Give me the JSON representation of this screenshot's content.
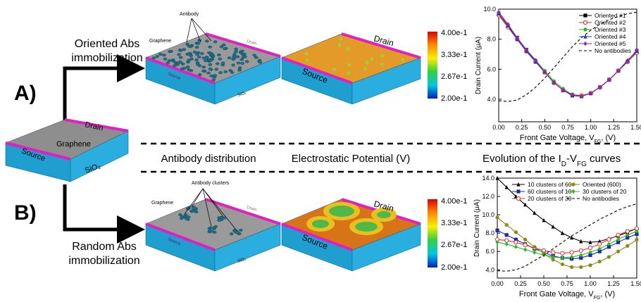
{
  "panel_labels": {
    "a": "A)",
    "b": "B)"
  },
  "routes": {
    "oriented": [
      "Oriented Abs",
      "immobilization"
    ],
    "random": [
      "Random Abs",
      "immobilization"
    ]
  },
  "base_device": {
    "graphene": "Graphene",
    "drain": "Drain",
    "source": "Source",
    "oxide": "SiO₂"
  },
  "oriented_device": {
    "antibody": "Antibody",
    "graphene": "Graphene",
    "source": "Source",
    "oxide": "SiO₂",
    "drain": "Drain"
  },
  "oriented_potential": {
    "drain": "Drain",
    "source": "Source"
  },
  "random_device": {
    "antibody": "Antibody clusters",
    "graphene": "Graphene",
    "source": "Source",
    "oxide": "SiO₂",
    "drain": "Drain"
  },
  "random_potential": {
    "drain": "Drain",
    "source": "Source"
  },
  "colorbar_top": [
    "4.00e-1",
    "3.33e-1",
    "2.67e-1",
    "2.00e-1"
  ],
  "colorbar_bottom": [
    "4.00e-1",
    "3.33e-1",
    "2.67e-1",
    "2.00e-1"
  ],
  "column_headings": {
    "distribution": "Antibody distribution",
    "potential": "Electrostatic Potential (V)",
    "curves": [
      "Evolution of the I",
      "D",
      "-V",
      "FG",
      " curves"
    ]
  },
  "chart_data": [
    {
      "type": "line",
      "xlabel": [
        "Front Gate Voltage, V",
        "FG",
        ", (V)"
      ],
      "ylabel": "Drain Current (μA)",
      "x": [
        0,
        0.1,
        0.2,
        0.3,
        0.4,
        0.5,
        0.6,
        0.7,
        0.8,
        0.9,
        1.0,
        1.1,
        1.2,
        1.3,
        1.4,
        1.5
      ],
      "xlim": [
        0,
        1.5
      ],
      "xticks": [
        {
          "value": 0,
          "label": "0.00"
        },
        {
          "value": 0.25,
          "label": "0.25"
        },
        {
          "value": 0.5,
          "label": "0.50"
        },
        {
          "value": 0.75,
          "label": "0.75"
        },
        {
          "value": 1,
          "label": "1.00"
        },
        {
          "value": 1.25,
          "label": "1.25"
        },
        {
          "value": 1.5,
          "label": "1.50"
        }
      ],
      "ylim": [
        2.5,
        10
      ],
      "yticks": [
        {
          "value": 4,
          "label": "4.0"
        },
        {
          "value": 6,
          "label": "6.0"
        },
        {
          "value": 8,
          "label": "8.0"
        },
        {
          "value": 10,
          "label": "10.0"
        }
      ],
      "legend": "upper right",
      "legend_columns": 1,
      "series": [
        {
          "name": "Oriented #1",
          "color": "#000000",
          "marker": "square",
          "values": [
            9.7,
            8.9,
            8.1,
            7.3,
            6.5,
            5.8,
            5.1,
            4.6,
            4.25,
            4.2,
            4.4,
            4.8,
            5.3,
            5.9,
            6.5,
            7.2
          ]
        },
        {
          "name": "Oriented #2",
          "color": "#e02020",
          "marker": "circle-open",
          "values": [
            9.6,
            8.8,
            8.0,
            7.2,
            6.5,
            5.8,
            5.1,
            4.6,
            4.3,
            4.25,
            4.4,
            4.8,
            5.3,
            5.9,
            6.5,
            7.1
          ]
        },
        {
          "name": "Oriented #3",
          "color": "#22bb22",
          "marker": "circle",
          "values": [
            9.7,
            8.9,
            8.1,
            7.3,
            6.6,
            5.9,
            5.2,
            4.7,
            4.3,
            4.2,
            4.4,
            4.8,
            5.3,
            5.9,
            6.5,
            7.2
          ]
        },
        {
          "name": "Oriented #4",
          "color": "#2030c0",
          "marker": "triangle",
          "values": [
            9.7,
            8.9,
            8.0,
            7.2,
            6.5,
            5.8,
            5.1,
            4.6,
            4.25,
            4.2,
            4.4,
            4.8,
            5.3,
            5.9,
            6.6,
            7.2
          ]
        },
        {
          "name": "Oriented #5",
          "color": "#a020a0",
          "marker": "diamond",
          "values": [
            9.8,
            9.0,
            8.1,
            7.3,
            6.6,
            5.8,
            5.1,
            4.6,
            4.3,
            4.2,
            4.4,
            4.8,
            5.3,
            5.9,
            6.5,
            7.3
          ]
        },
        {
          "name": "No antibodies",
          "color": "#000000",
          "marker": "none",
          "dash": true,
          "values": [
            3.9,
            3.85,
            3.95,
            4.3,
            4.8,
            5.4,
            6.1,
            6.8,
            7.5,
            8.1,
            8.6,
            9.0,
            9.3,
            9.5,
            9.7,
            9.8
          ]
        }
      ]
    },
    {
      "type": "line",
      "xlabel": [
        "Front Gate Voltage, V",
        "FG",
        ", (V)"
      ],
      "ylabel": "Drain Current (μA)",
      "x": [
        0,
        0.1,
        0.2,
        0.3,
        0.4,
        0.5,
        0.6,
        0.7,
        0.8,
        0.9,
        1.0,
        1.1,
        1.2,
        1.3,
        1.4,
        1.5
      ],
      "xlim": [
        0,
        1.5
      ],
      "xticks": [
        {
          "value": 0,
          "label": "0.00"
        },
        {
          "value": 0.25,
          "label": "0.25"
        },
        {
          "value": 0.5,
          "label": "0.50"
        },
        {
          "value": 0.75,
          "label": "0.75"
        },
        {
          "value": 1,
          "label": "1.00"
        },
        {
          "value": 1.25,
          "label": "1.25"
        },
        {
          "value": 1.5,
          "label": "1.50"
        }
      ],
      "ylim": [
        3.1,
        14
      ],
      "yticks": [
        {
          "value": 4,
          "label": "4.0"
        },
        {
          "value": 6,
          "label": "6.0"
        },
        {
          "value": 8,
          "label": "8.0"
        },
        {
          "value": 10,
          "label": "10.0"
        },
        {
          "value": 12,
          "label": "12.0"
        },
        {
          "value": 14,
          "label": "14.0"
        }
      ],
      "legend": "upper center",
      "legend_columns": 2,
      "series": [
        {
          "name": "10 clusters of 60",
          "color": "#000000",
          "marker": "triangle",
          "values": [
            14.0,
            13.0,
            12.0,
            11.1,
            10.2,
            9.4,
            8.7,
            8.0,
            7.5,
            7.1,
            7.0,
            7.1,
            7.4,
            7.7,
            8.1,
            8.5
          ]
        },
        {
          "name": "60 clusters of 10",
          "color": "#1a2aa8",
          "marker": "square",
          "values": [
            8.3,
            7.8,
            7.3,
            6.8,
            6.3,
            5.9,
            5.5,
            5.3,
            5.2,
            5.3,
            5.6,
            6.0,
            6.5,
            7.0,
            7.5,
            7.9
          ]
        },
        {
          "name": "20 clusters of 30",
          "color": "#e03030",
          "marker": "circle-open",
          "values": [
            7.3,
            7.2,
            7.0,
            6.7,
            6.4,
            6.1,
            5.9,
            5.8,
            5.9,
            6.1,
            6.4,
            6.8,
            7.3,
            7.8,
            8.2,
            8.5
          ]
        },
        {
          "name": "Oriented (600)",
          "color": "#8a8a10",
          "marker": "circle",
          "values": [
            9.7,
            8.9,
            8.1,
            7.3,
            6.5,
            5.8,
            5.1,
            4.6,
            4.3,
            4.3,
            4.5,
            4.9,
            5.4,
            6.0,
            6.6,
            7.3
          ]
        },
        {
          "name": "30 clusters of 20",
          "color": "#22bb22",
          "marker": "diamond",
          "values": [
            7.0,
            6.8,
            6.5,
            6.2,
            5.9,
            5.6,
            5.4,
            5.3,
            5.4,
            5.6,
            5.9,
            6.3,
            6.8,
            7.3,
            7.8,
            8.2
          ]
        },
        {
          "name": "No antibodies",
          "color": "#000000",
          "marker": "none",
          "dash": true,
          "values": [
            3.9,
            3.85,
            4.0,
            4.4,
            5.0,
            5.6,
            6.3,
            7.0,
            7.7,
            8.3,
            8.9,
            9.5,
            10.0,
            10.5,
            10.9,
            11.2
          ]
        }
      ]
    }
  ]
}
